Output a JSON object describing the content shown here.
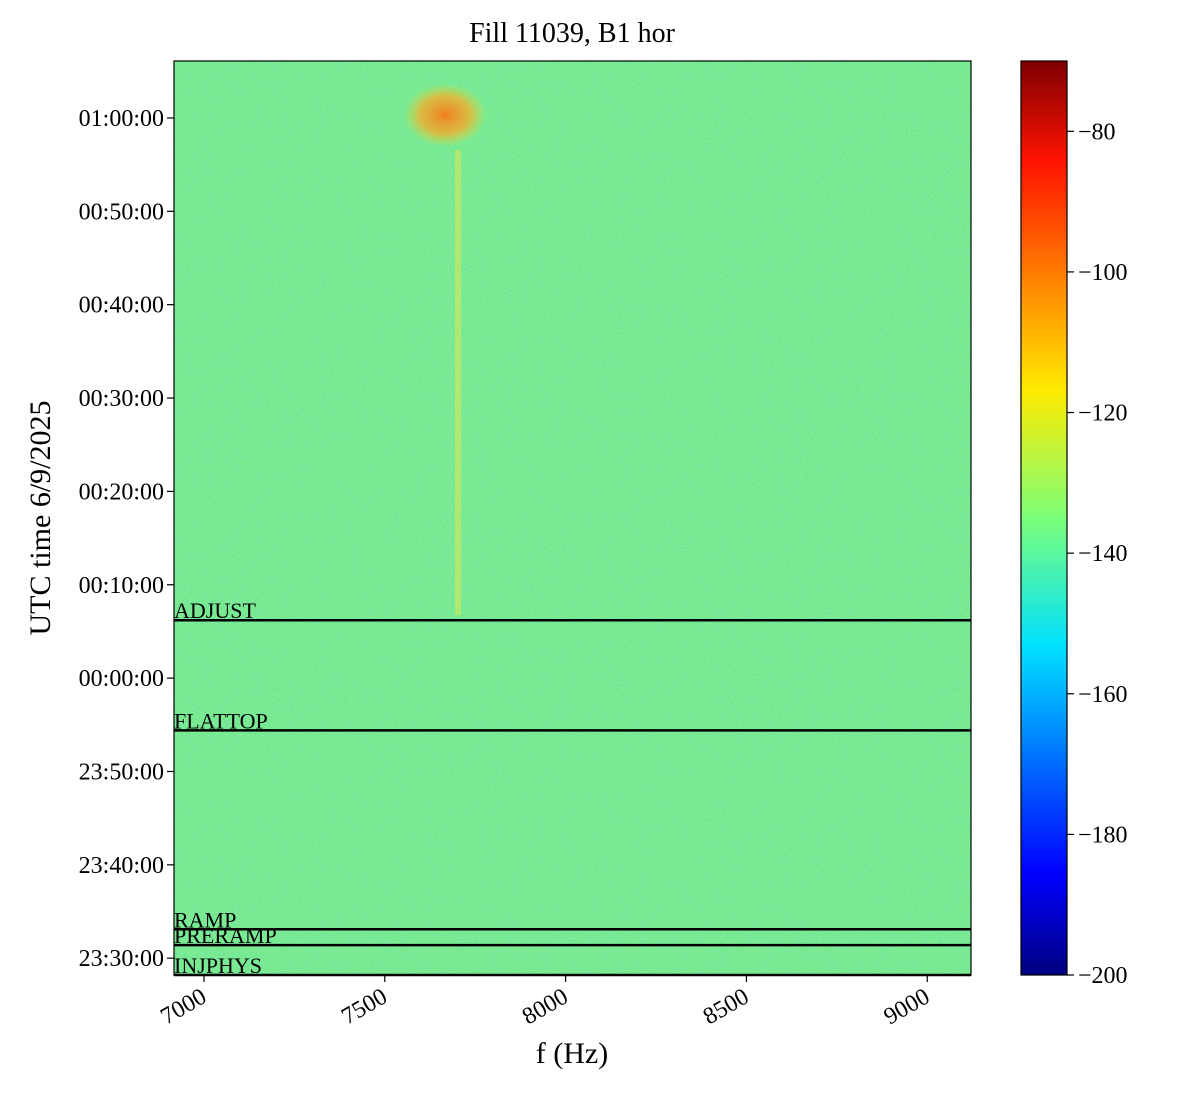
{
  "chart_data": {
    "type": "spectrogram",
    "title": "Fill 11039, B1 hor",
    "xlabel": "f (Hz)",
    "ylabel": "UTC time 6/9/2025",
    "xlim": [
      6917,
      9121
    ],
    "xticks": [
      7000,
      7500,
      8000,
      8500,
      9000
    ],
    "ylim": [
      -31.8,
      66.1
    ],
    "yticks": [
      {
        "value": -30,
        "label": "23:30:00"
      },
      {
        "value": -20,
        "label": "23:40:00"
      },
      {
        "value": -10,
        "label": "23:50:00"
      },
      {
        "value": 0,
        "label": "00:00:00"
      },
      {
        "value": 10,
        "label": "00:10:00"
      },
      {
        "value": 20,
        "label": "00:20:00"
      },
      {
        "value": 30,
        "label": "00:30:00"
      },
      {
        "value": 40,
        "label": "00:40:00"
      },
      {
        "value": 50,
        "label": "00:50:00"
      },
      {
        "value": 60,
        "label": "01:00:00"
      }
    ],
    "colormap": "jet",
    "clim": [
      -200,
      -70
    ],
    "cticks": [
      {
        "value": -200,
        "label": "−200"
      },
      {
        "value": -180,
        "label": "−180"
      },
      {
        "value": -160,
        "label": "−160"
      },
      {
        "value": -140,
        "label": "−140"
      },
      {
        "value": -120,
        "label": "−120"
      },
      {
        "value": -100,
        "label": "−100"
      },
      {
        "value": -80,
        "label": "−80"
      }
    ],
    "annotations": [
      {
        "text": "ADJUST",
        "y": 6.2
      },
      {
        "text": "FLATTOP",
        "y": -5.6
      },
      {
        "text": "RAMP",
        "y": -26.9
      },
      {
        "text": "PRERAMP",
        "y": -28.6
      },
      {
        "text": "INJPHYS",
        "y": -31.8
      }
    ]
  }
}
